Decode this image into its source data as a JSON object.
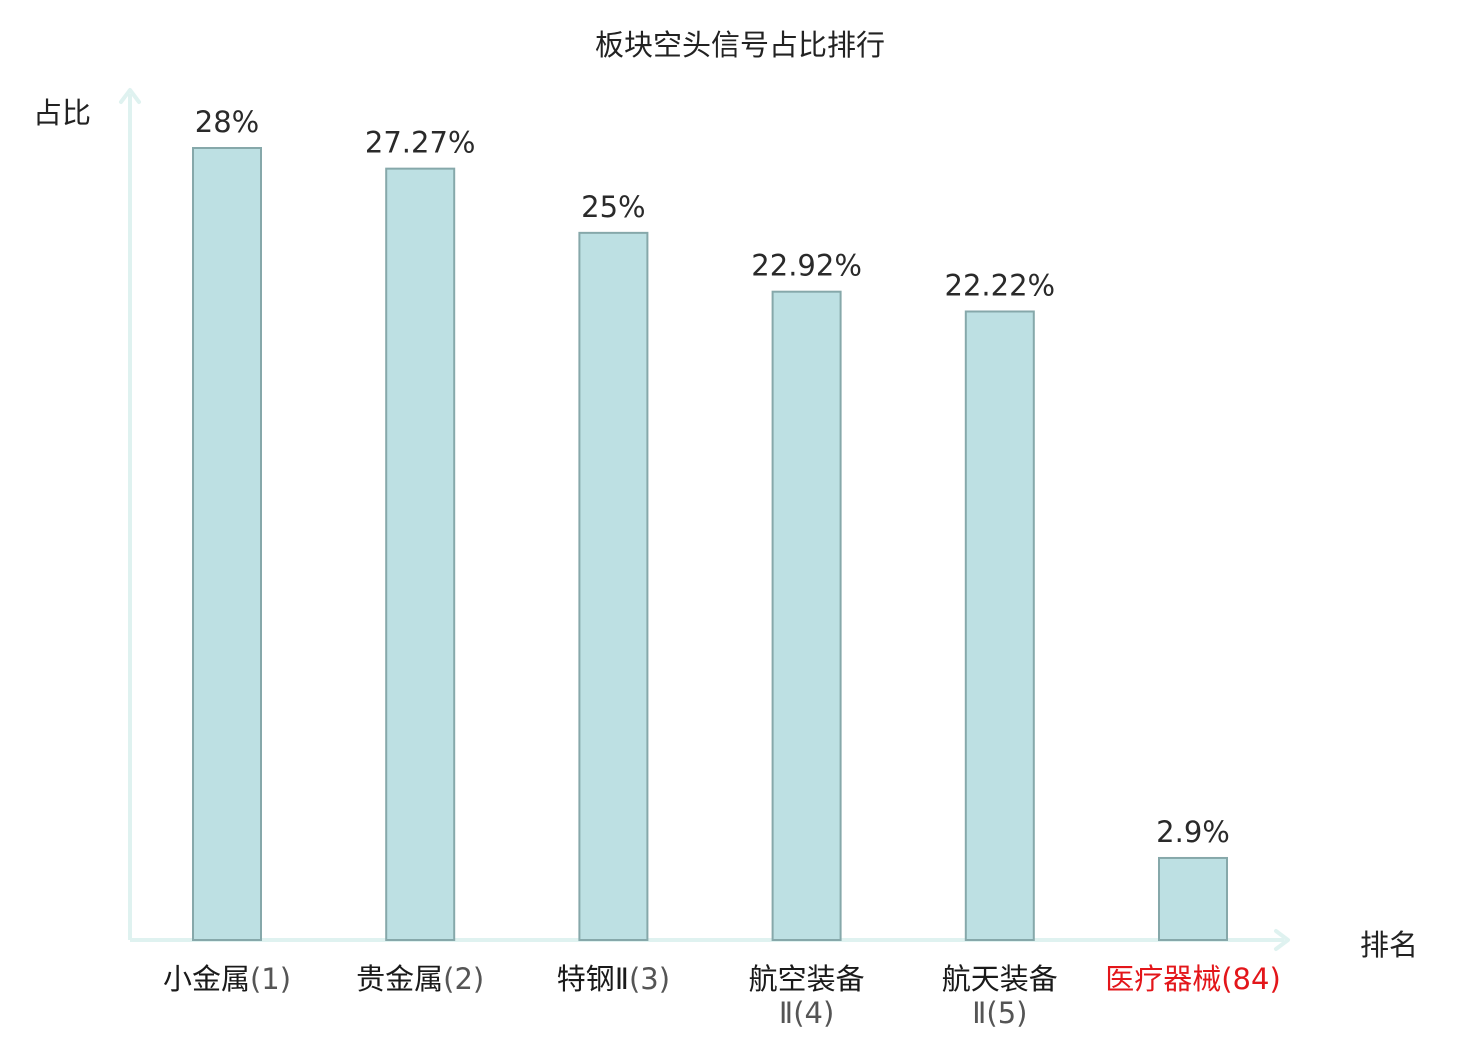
{
  "chart_data": {
    "type": "bar",
    "title": "板块空头信号占比排行",
    "ylabel": "占比",
    "xlabel": "排名",
    "ylim": [
      0,
      28
    ],
    "grid": false,
    "categories": [
      {
        "name": "小金属",
        "rank_text": "(1)",
        "name_line1": "小金属",
        "name_line2": "",
        "highlight": false
      },
      {
        "name": "贵金属",
        "rank_text": "(2)",
        "name_line1": "贵金属",
        "name_line2": "",
        "highlight": false
      },
      {
        "name": "特钢Ⅱ",
        "rank_text": "(3)",
        "name_line1": "特钢Ⅱ",
        "name_line2": "",
        "highlight": false
      },
      {
        "name": "航空装备Ⅱ",
        "rank_text": "(4)",
        "name_line1": "航空装备",
        "name_line2": "Ⅱ",
        "highlight": false
      },
      {
        "name": "航天装备Ⅱ",
        "rank_text": "(5)",
        "name_line1": "航天装备",
        "name_line2": "Ⅱ",
        "highlight": false
      },
      {
        "name": "医疗器械",
        "rank_text": "(84)",
        "name_line1": "医疗器械",
        "name_line2": "",
        "highlight": true
      }
    ],
    "values": [
      28,
      27.27,
      25,
      22.92,
      22.22,
      2.9
    ],
    "value_labels": [
      "28%",
      "27.27%",
      "25%",
      "22.92%",
      "22.22%",
      "2.9%"
    ]
  },
  "colors": {
    "bar_fill": "#bde0e3",
    "bar_stroke": "#86a8aa",
    "axis": "#dff2f0",
    "highlight_label": "#e3161a",
    "text": "#222222"
  }
}
